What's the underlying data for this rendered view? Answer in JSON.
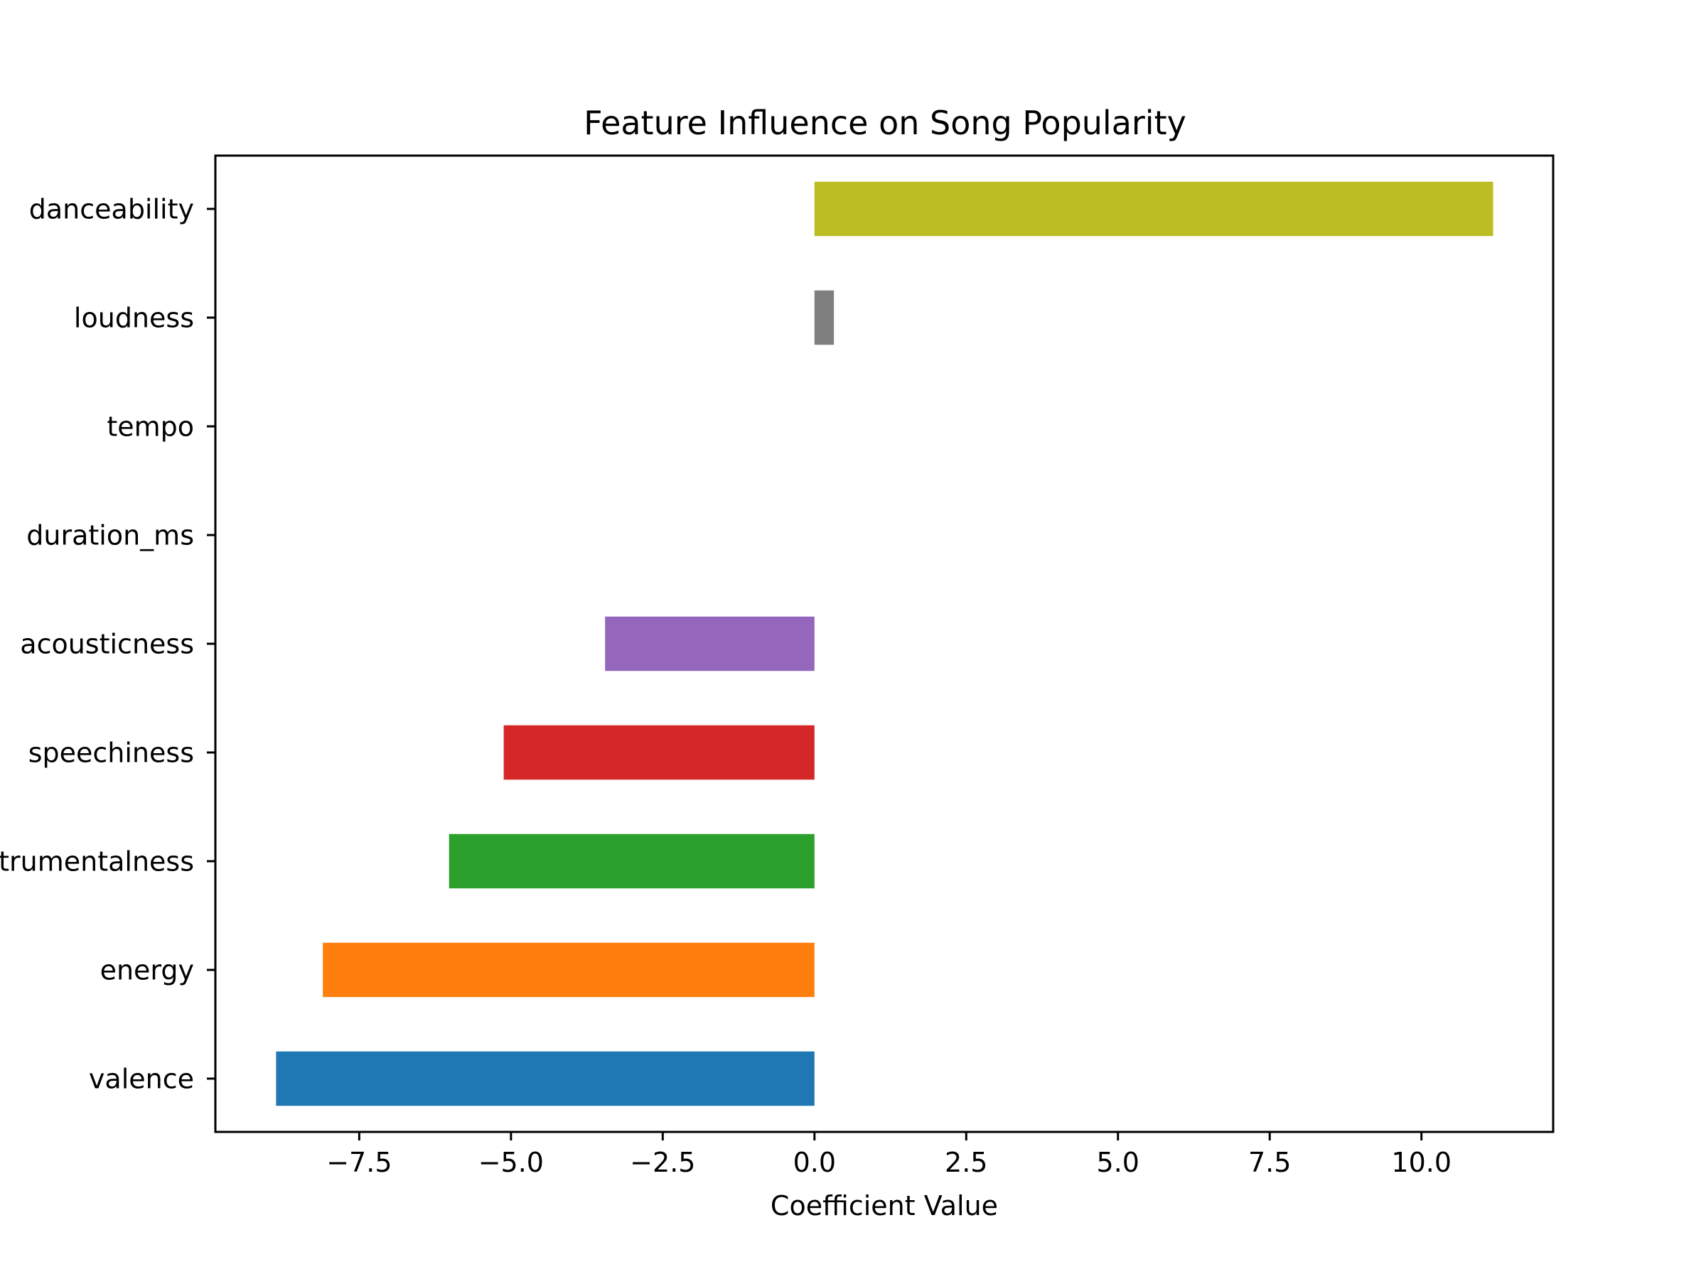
{
  "chart_data": {
    "type": "bar",
    "orientation": "horizontal",
    "title": "Feature Influence on Song Popularity",
    "xlabel": "Coefficient Value",
    "ylabel": "",
    "xlim": [
      -9.87,
      12.17
    ],
    "grid": false,
    "legend": "none",
    "categories": [
      "valence",
      "energy",
      "instrumentalness",
      "speechiness",
      "acousticness",
      "duration_ms",
      "tempo",
      "loudness",
      "danceability"
    ],
    "values": [
      -8.87,
      -8.1,
      -6.02,
      -5.12,
      -3.45,
      0.0,
      0.0,
      0.32,
      11.18
    ],
    "colors": [
      "#1f77b4",
      "#ff7f0e",
      "#2ca02c",
      "#d62728",
      "#9467bd",
      "#8c564b",
      "#e377c2",
      "#7f7f7f",
      "#bcbd22"
    ],
    "x_ticks": [
      -7.5,
      -5.0,
      -2.5,
      0.0,
      2.5,
      5.0,
      7.5,
      10.0
    ],
    "x_tick_labels": [
      "−7.5",
      "−5.0",
      "−2.5",
      "0.0",
      "2.5",
      "5.0",
      "7.5",
      "10.0"
    ]
  }
}
